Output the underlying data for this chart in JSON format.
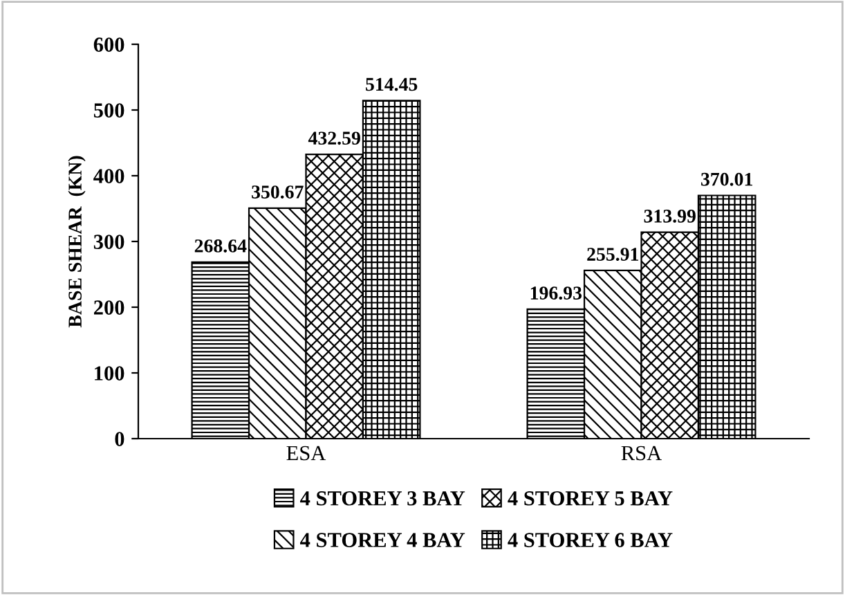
{
  "chart_data": {
    "type": "bar",
    "ylabel": "BASE SHEAR  (KN)",
    "categories": [
      "ESA",
      "RSA"
    ],
    "series": [
      {
        "name": "4 STOREY 3 BAY",
        "color": "#000000",
        "values": [
          268.64,
          196.93
        ]
      },
      {
        "name": "4 STOREY 4 BAY",
        "color": "#000000",
        "values": [
          350.67,
          255.91
        ]
      },
      {
        "name": "4 STOREY 5 BAY",
        "color": "#000000",
        "values": [
          432.59,
          313.99
        ]
      },
      {
        "name": "4 STOREY 6 BAY",
        "color": "#000000",
        "values": [
          514.45,
          370.01
        ]
      }
    ],
    "ylim": [
      0,
      600
    ],
    "yticks": [
      0,
      100,
      200,
      300,
      400,
      500,
      600
    ],
    "data_labels": true,
    "grid": false,
    "legend": "bottom"
  }
}
